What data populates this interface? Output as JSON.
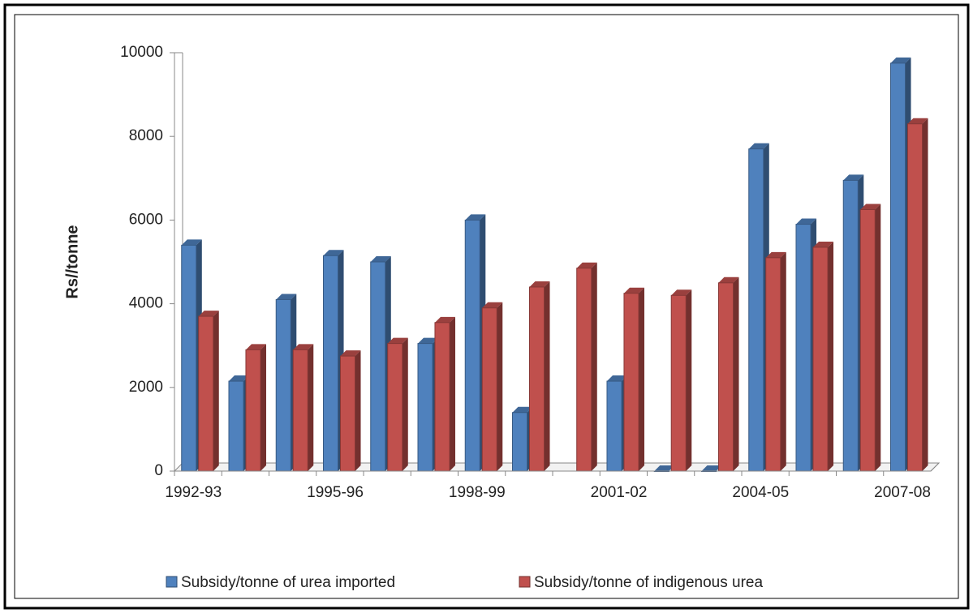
{
  "chart_data": {
    "type": "bar",
    "y_label": "Rs//tonne",
    "categories": [
      "1992-93",
      null,
      null,
      "1995-96",
      null,
      null,
      "1998-99",
      null,
      null,
      "2001-02",
      null,
      null,
      "2004-05",
      null,
      null,
      "2007-08"
    ],
    "series": [
      {
        "name": "Subsidy/tonne of urea imported",
        "color": "#4f81bd",
        "values": [
          5400,
          2150,
          4100,
          5150,
          5000,
          3050,
          6000,
          1400,
          null,
          2150,
          0,
          0,
          7700,
          5900,
          6950,
          9750
        ]
      },
      {
        "name": "Subsidy/tonne of indigenous urea",
        "color": "#c0504d",
        "values": [
          3700,
          2900,
          2900,
          2750,
          3050,
          3550,
          3900,
          4400,
          4850,
          4250,
          4200,
          4500,
          5100,
          5350,
          6250,
          8300
        ]
      }
    ],
    "ylim": [
      0,
      10000
    ],
    "yticks": [
      0,
      2000,
      4000,
      6000,
      8000,
      10000
    ],
    "grid": false,
    "legend": "bottom"
  }
}
